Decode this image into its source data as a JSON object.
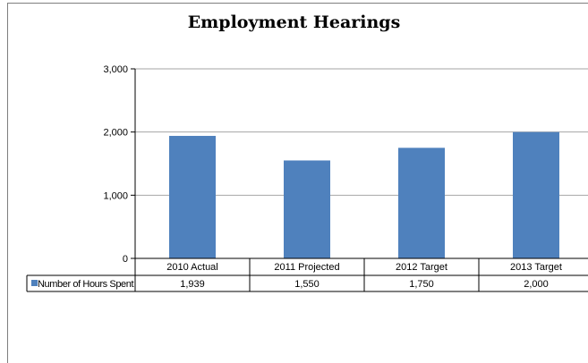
{
  "chart_data": {
    "type": "bar",
    "title": "Employment Hearings",
    "categories": [
      "2010 Actual",
      "2011 Projected",
      "2012 Target",
      "2013 Target"
    ],
    "series": [
      {
        "name": "Number of Hours Spent",
        "values": [
          1939,
          1550,
          1750,
          2000
        ],
        "value_labels": [
          "1,939",
          "1,550",
          "1,750",
          "2,000"
        ],
        "color": "#4f81bd"
      }
    ],
    "yticks": [
      "0",
      "1,000",
      "2,000",
      "3,000"
    ],
    "ylim": [
      0,
      3000
    ],
    "grid": true,
    "legend": "data-table"
  }
}
